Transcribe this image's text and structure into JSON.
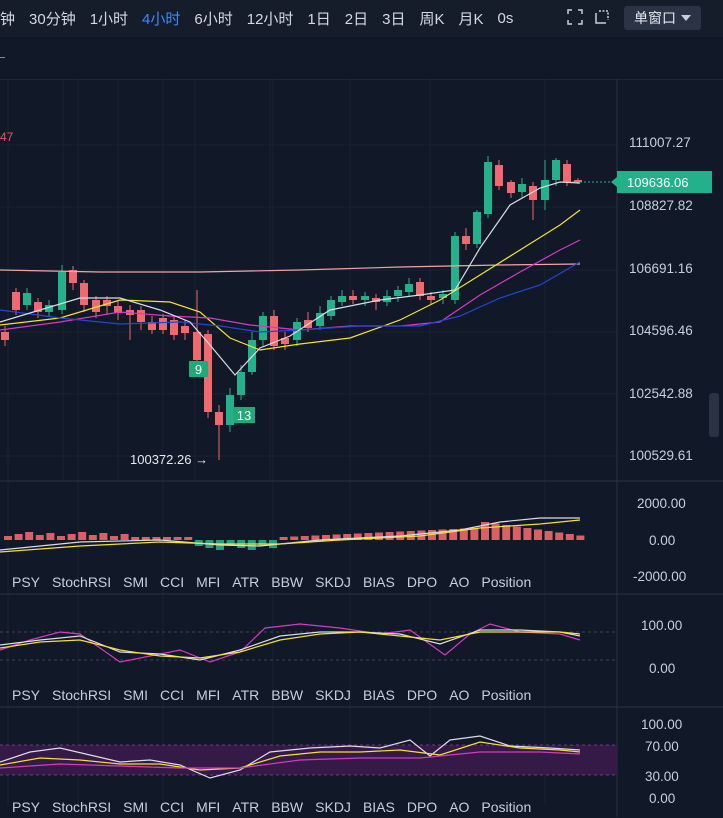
{
  "toolbar": {
    "timeframes": [
      "钟",
      "30分钟",
      "1小时",
      "4小时",
      "6小时",
      "12小时",
      "1日",
      "2日",
      "3日",
      "周K",
      "月K",
      "0s"
    ],
    "active_timeframe": "4小时",
    "window_mode": "单窗口"
  },
  "main_chart": {
    "current_price": "109636.06",
    "y_ticks": [
      "111007.27",
      "108827.82",
      "106691.16",
      "104596.46",
      "102542.88",
      "100529.61"
    ],
    "low_marker": "100372.26 →",
    "edge_label": "47",
    "td_badges": [
      "9",
      "13"
    ],
    "colors": {
      "up": "#22b18a",
      "down": "#f0696e",
      "ma_white": "#d9dde6",
      "ma_yellow": "#f5e033",
      "ma_pink": "#d63ac4",
      "ma_blue": "#2446d6",
      "ma_rose": "#f0a6a6"
    }
  },
  "panel1": {
    "y_ticks": [
      "2000.00",
      "0.00",
      "-2000.00"
    ]
  },
  "panel2": {
    "y_ticks": [
      "100.00",
      "0.00"
    ]
  },
  "panel3": {
    "y_ticks": [
      "100.00",
      "70.00",
      "30.00",
      "0.00"
    ]
  },
  "indicator_tabs": [
    "PSY",
    "StochRSI",
    "SMI",
    "CCI",
    "MFI",
    "ATR",
    "BBW",
    "SKDJ",
    "BIAS",
    "DPO",
    "AO",
    "Position"
  ]
}
